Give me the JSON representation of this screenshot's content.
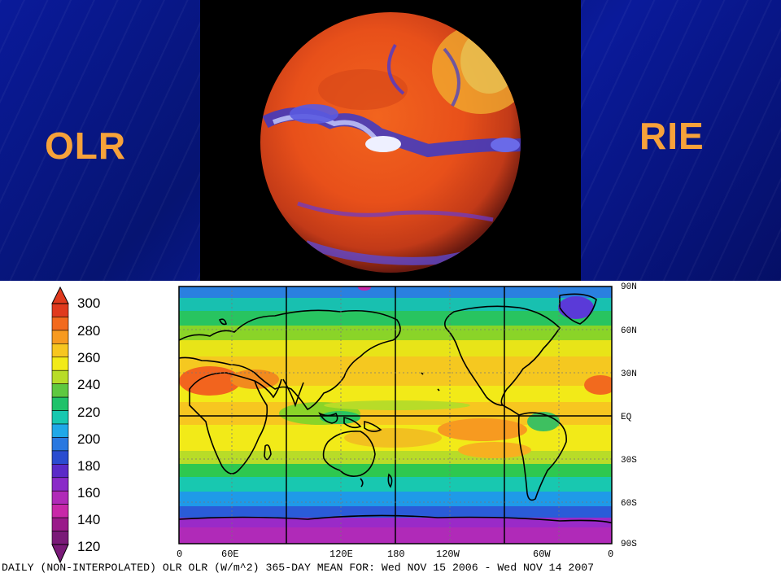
{
  "slide": {
    "left_title": "OLR",
    "right_title": "RIE",
    "title_color": "#f7a23a",
    "background_color": "#0a1a9a"
  },
  "colorbar": {
    "labels": [
      "300",
      "280",
      "260",
      "240",
      "220",
      "200",
      "180",
      "160",
      "140",
      "120"
    ],
    "colors": [
      "#e03a1e",
      "#f26a1e",
      "#f79a20",
      "#f7c620",
      "#f2ea18",
      "#b8dc28",
      "#5ec840",
      "#1fc26a",
      "#18c8b0",
      "#20a8e8",
      "#2a78e0",
      "#2a4cd0",
      "#5a2ac8",
      "#8a2ac8",
      "#b02ab8",
      "#c828a8",
      "#9a1a8a",
      "#7a1a78"
    ]
  },
  "map": {
    "lat_labels": [
      "90N",
      "60N",
      "30N",
      "EQ",
      "30S",
      "60S",
      "90S"
    ],
    "lon_labels": [
      "0",
      "60E",
      "120E",
      "180",
      "120W",
      "60W",
      "0"
    ],
    "caption": "DAILY (NON-INTERPOLATED) OLR  OLR (W/m^2) 365-DAY MEAN FOR: Wed NOV 15 2006 - Wed NOV 14 2007"
  }
}
